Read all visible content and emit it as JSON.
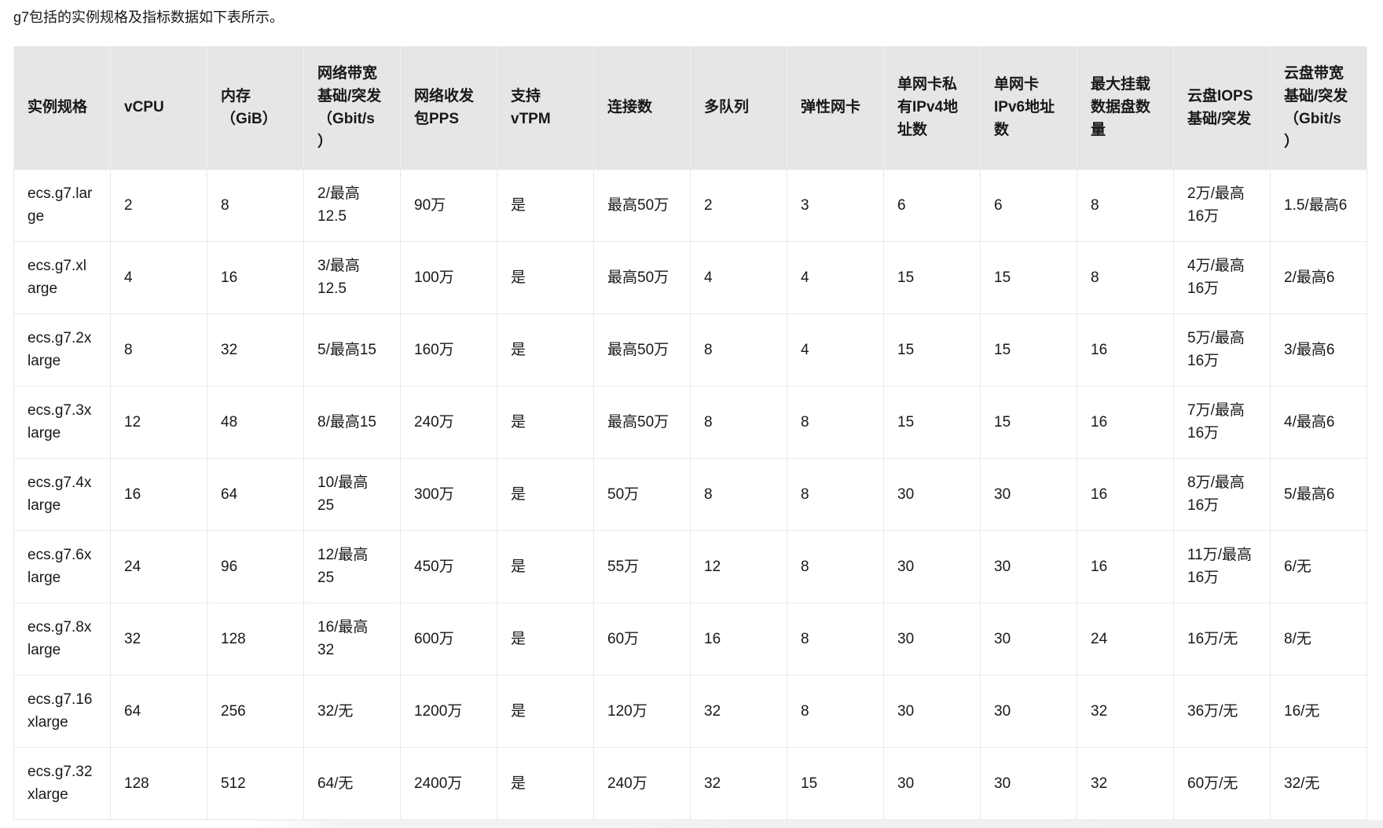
{
  "intro": "g7包括的实例规格及指标数据如下表所示。",
  "colors": {
    "header_background": "#e6e6e6",
    "body_border": "#e9e9e9",
    "text": "#181818",
    "page_background": "#ffffff"
  },
  "table": {
    "headers": [
      "实例规格",
      "vCPU",
      "内存\n（GiB）",
      "网络带宽\n基础/突发\n（Gbit/s\n）",
      "网络收发\n包PPS",
      "支持\nvTPM",
      "连接数",
      "多队列",
      "弹性网卡",
      "单网卡私\n有IPv4地\n址数",
      "单网卡\nIPv6地址\n数",
      "最大挂载\n数据盘数\n量",
      "云盘IOPS\n基础/突发",
      "云盘带宽\n基础/突发\n（Gbit/s\n）"
    ],
    "rows": [
      [
        "ecs.g7.lar\nge",
        "2",
        "8",
        "2/最高\n12.5",
        "90万",
        "是",
        "最高50万",
        "2",
        "3",
        "6",
        "6",
        "8",
        "2万/最高\n16万",
        "1.5/最高6"
      ],
      [
        "ecs.g7.xl\narge",
        "4",
        "16",
        "3/最高\n12.5",
        "100万",
        "是",
        "最高50万",
        "4",
        "4",
        "15",
        "15",
        "8",
        "4万/最高\n16万",
        "2/最高6"
      ],
      [
        "ecs.g7.2x\nlarge",
        "8",
        "32",
        "5/最高15",
        "160万",
        "是",
        "最高50万",
        "8",
        "4",
        "15",
        "15",
        "16",
        "5万/最高\n16万",
        "3/最高6"
      ],
      [
        "ecs.g7.3x\nlarge",
        "12",
        "48",
        "8/最高15",
        "240万",
        "是",
        "最高50万",
        "8",
        "8",
        "15",
        "15",
        "16",
        "7万/最高\n16万",
        "4/最高6"
      ],
      [
        "ecs.g7.4x\nlarge",
        "16",
        "64",
        "10/最高\n25",
        "300万",
        "是",
        "50万",
        "8",
        "8",
        "30",
        "30",
        "16",
        "8万/最高\n16万",
        "5/最高6"
      ],
      [
        "ecs.g7.6x\nlarge",
        "24",
        "96",
        "12/最高\n25",
        "450万",
        "是",
        "55万",
        "12",
        "8",
        "30",
        "30",
        "16",
        "11万/最高\n16万",
        "6/无"
      ],
      [
        "ecs.g7.8x\nlarge",
        "32",
        "128",
        "16/最高\n32",
        "600万",
        "是",
        "60万",
        "16",
        "8",
        "30",
        "30",
        "24",
        "16万/无",
        "8/无"
      ],
      [
        "ecs.g7.16\nxlarge",
        "64",
        "256",
        "32/无",
        "1200万",
        "是",
        "120万",
        "32",
        "8",
        "30",
        "30",
        "32",
        "36万/无",
        "16/无"
      ],
      [
        "ecs.g7.32\nxlarge",
        "128",
        "512",
        "64/无",
        "2400万",
        "是",
        "240万",
        "32",
        "15",
        "30",
        "30",
        "32",
        "60万/无",
        "32/无"
      ]
    ]
  }
}
